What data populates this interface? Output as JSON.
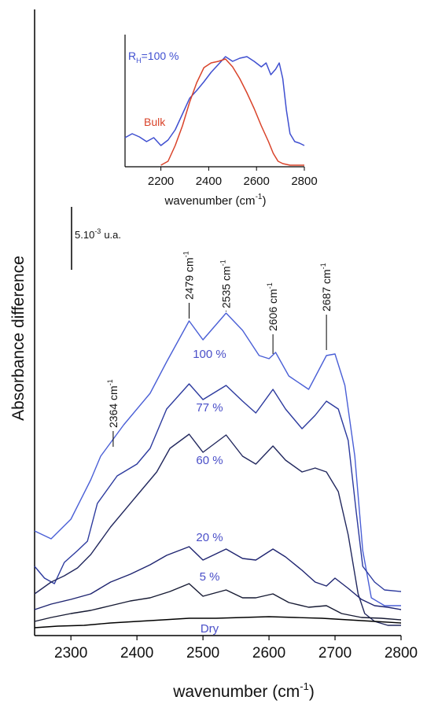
{
  "chart_data": {
    "type": "line",
    "ylabel": "Absorbance difference",
    "xlabel": "wavenumber (cm",
    "xlabel_sup": "-1",
    "xlabel_tail": ")",
    "xlim": [
      2245,
      2800
    ],
    "xticks": [
      2300,
      2400,
      2500,
      2600,
      2700,
      2800
    ],
    "scale_bar_label": "5.10",
    "scale_bar_sup": "-3",
    "scale_bar_unit": "u.a.",
    "peak_labels": [
      {
        "value": 2364,
        "text": "2364 cm",
        "sup": "-1"
      },
      {
        "value": 2479,
        "text": "2479 cm",
        "sup": "-1"
      },
      {
        "value": 2535,
        "text": "2535 cm",
        "sup": "-1"
      },
      {
        "value": 2606,
        "text": "2606 cm",
        "sup": "-1"
      },
      {
        "value": 2687,
        "text": "2687 cm",
        "sup": "-1"
      }
    ],
    "series": [
      {
        "name": "100 %",
        "color": "#4a5fd6",
        "label_x": 2510,
        "points": [
          [
            2245,
            675
          ],
          [
            2270,
            685
          ],
          [
            2300,
            660
          ],
          [
            2330,
            610
          ],
          [
            2345,
            580
          ],
          [
            2380,
            540
          ],
          [
            2420,
            500
          ],
          [
            2445,
            460
          ],
          [
            2479,
            408
          ],
          [
            2500,
            432
          ],
          [
            2535,
            398
          ],
          [
            2560,
            420
          ],
          [
            2585,
            452
          ],
          [
            2600,
            456
          ],
          [
            2610,
            448
          ],
          [
            2630,
            478
          ],
          [
            2660,
            495
          ],
          [
            2687,
            452
          ],
          [
            2700,
            450
          ],
          [
            2715,
            490
          ],
          [
            2730,
            580
          ],
          [
            2742,
            700
          ],
          [
            2755,
            760
          ],
          [
            2775,
            770
          ],
          [
            2800,
            770
          ]
        ]
      },
      {
        "name": "77 %",
        "color": "#2c3a9e",
        "label_x": 2510,
        "points": [
          [
            2245,
            720
          ],
          [
            2260,
            735
          ],
          [
            2275,
            742
          ],
          [
            2290,
            715
          ],
          [
            2310,
            700
          ],
          [
            2325,
            688
          ],
          [
            2340,
            640
          ],
          [
            2370,
            605
          ],
          [
            2400,
            590
          ],
          [
            2420,
            570
          ],
          [
            2445,
            520
          ],
          [
            2479,
            488
          ],
          [
            2500,
            508
          ],
          [
            2535,
            490
          ],
          [
            2560,
            510
          ],
          [
            2580,
            525
          ],
          [
            2606,
            495
          ],
          [
            2625,
            520
          ],
          [
            2650,
            545
          ],
          [
            2670,
            528
          ],
          [
            2687,
            510
          ],
          [
            2705,
            520
          ],
          [
            2720,
            560
          ],
          [
            2732,
            650
          ],
          [
            2742,
            720
          ],
          [
            2760,
            740
          ],
          [
            2775,
            750
          ],
          [
            2800,
            752
          ]
        ]
      },
      {
        "name": "60 %",
        "color": "#22285e",
        "label_x": 2510,
        "points": [
          [
            2245,
            755
          ],
          [
            2270,
            740
          ],
          [
            2290,
            732
          ],
          [
            2310,
            722
          ],
          [
            2330,
            705
          ],
          [
            2360,
            670
          ],
          [
            2400,
            630
          ],
          [
            2430,
            600
          ],
          [
            2450,
            570
          ],
          [
            2479,
            552
          ],
          [
            2500,
            575
          ],
          [
            2535,
            553
          ],
          [
            2560,
            580
          ],
          [
            2580,
            590
          ],
          [
            2606,
            567
          ],
          [
            2625,
            585
          ],
          [
            2650,
            600
          ],
          [
            2670,
            595
          ],
          [
            2687,
            600
          ],
          [
            2705,
            625
          ],
          [
            2720,
            680
          ],
          [
            2735,
            755
          ],
          [
            2745,
            780
          ],
          [
            2760,
            790
          ],
          [
            2780,
            795
          ],
          [
            2800,
            795
          ]
        ]
      },
      {
        "name": "20 %",
        "color": "#1e2470",
        "label_x": 2510,
        "points": [
          [
            2245,
            775
          ],
          [
            2270,
            768
          ],
          [
            2300,
            762
          ],
          [
            2330,
            755
          ],
          [
            2360,
            740
          ],
          [
            2390,
            730
          ],
          [
            2420,
            718
          ],
          [
            2445,
            706
          ],
          [
            2479,
            695
          ],
          [
            2500,
            712
          ],
          [
            2535,
            698
          ],
          [
            2560,
            710
          ],
          [
            2580,
            712
          ],
          [
            2606,
            698
          ],
          [
            2625,
            708
          ],
          [
            2650,
            725
          ],
          [
            2670,
            740
          ],
          [
            2687,
            745
          ],
          [
            2700,
            735
          ],
          [
            2720,
            748
          ],
          [
            2740,
            762
          ],
          [
            2760,
            770
          ],
          [
            2780,
            772
          ],
          [
            2800,
            775
          ]
        ]
      },
      {
        "name": "5 %",
        "color": "#151932",
        "label_x": 2510,
        "points": [
          [
            2245,
            790
          ],
          [
            2270,
            785
          ],
          [
            2300,
            780
          ],
          [
            2330,
            776
          ],
          [
            2360,
            770
          ],
          [
            2390,
            764
          ],
          [
            2420,
            760
          ],
          [
            2450,
            752
          ],
          [
            2479,
            742
          ],
          [
            2500,
            758
          ],
          [
            2535,
            750
          ],
          [
            2560,
            760
          ],
          [
            2580,
            760
          ],
          [
            2606,
            755
          ],
          [
            2630,
            766
          ],
          [
            2660,
            772
          ],
          [
            2687,
            770
          ],
          [
            2710,
            780
          ],
          [
            2740,
            785
          ],
          [
            2770,
            786
          ],
          [
            2800,
            788
          ]
        ]
      },
      {
        "name": "Dry",
        "color": "#000000",
        "label_x": 2510,
        "points": [
          [
            2245,
            798
          ],
          [
            2280,
            796
          ],
          [
            2320,
            795
          ],
          [
            2360,
            792
          ],
          [
            2400,
            790
          ],
          [
            2440,
            788
          ],
          [
            2479,
            786
          ],
          [
            2520,
            786
          ],
          [
            2560,
            785
          ],
          [
            2600,
            784
          ],
          [
            2640,
            785
          ],
          [
            2680,
            786
          ],
          [
            2720,
            788
          ],
          [
            2760,
            790
          ],
          [
            2800,
            792
          ]
        ]
      }
    ],
    "inset": {
      "xlabel": "wavenumber (cm",
      "xlabel_sup": "-1",
      "xlabel_tail": ")",
      "xlim": [
        2050,
        2800
      ],
      "xticks": [
        2200,
        2400,
        2600,
        2800
      ],
      "series": [
        {
          "name": "R",
          "sub": "H",
          "tail": "=100 %",
          "color": "#3f4fd0",
          "points": [
            [
              2050,
              175
            ],
            [
              2080,
              170
            ],
            [
              2110,
              174
            ],
            [
              2140,
              180
            ],
            [
              2170,
              175
            ],
            [
              2200,
              185
            ],
            [
              2230,
              178
            ],
            [
              2260,
              165
            ],
            [
              2290,
              145
            ],
            [
              2320,
              125
            ],
            [
              2350,
              115
            ],
            [
              2380,
              104
            ],
            [
              2410,
              92
            ],
            [
              2440,
              82
            ],
            [
              2470,
              72
            ],
            [
              2500,
              78
            ],
            [
              2530,
              74
            ],
            [
              2560,
              72
            ],
            [
              2590,
              78
            ],
            [
              2620,
              85
            ],
            [
              2640,
              80
            ],
            [
              2660,
              95
            ],
            [
              2680,
              88
            ],
            [
              2695,
              80
            ],
            [
              2710,
              100
            ],
            [
              2725,
              140
            ],
            [
              2740,
              170
            ],
            [
              2760,
              180
            ],
            [
              2780,
              182
            ],
            [
              2800,
              185
            ]
          ]
        },
        {
          "name": "Bulk",
          "color": "#d9432a",
          "points": [
            [
              2200,
              210
            ],
            [
              2230,
              205
            ],
            [
              2260,
              185
            ],
            [
              2290,
              160
            ],
            [
              2320,
              130
            ],
            [
              2350,
              105
            ],
            [
              2380,
              86
            ],
            [
              2410,
              80
            ],
            [
              2440,
              78
            ],
            [
              2470,
              75
            ],
            [
              2500,
              85
            ],
            [
              2530,
              100
            ],
            [
              2560,
              118
            ],
            [
              2590,
              138
            ],
            [
              2620,
              160
            ],
            [
              2650,
              180
            ],
            [
              2670,
              195
            ],
            [
              2690,
              205
            ],
            [
              2710,
              208
            ],
            [
              2740,
              210
            ],
            [
              2770,
              210
            ],
            [
              2800,
              210
            ]
          ]
        }
      ]
    }
  }
}
